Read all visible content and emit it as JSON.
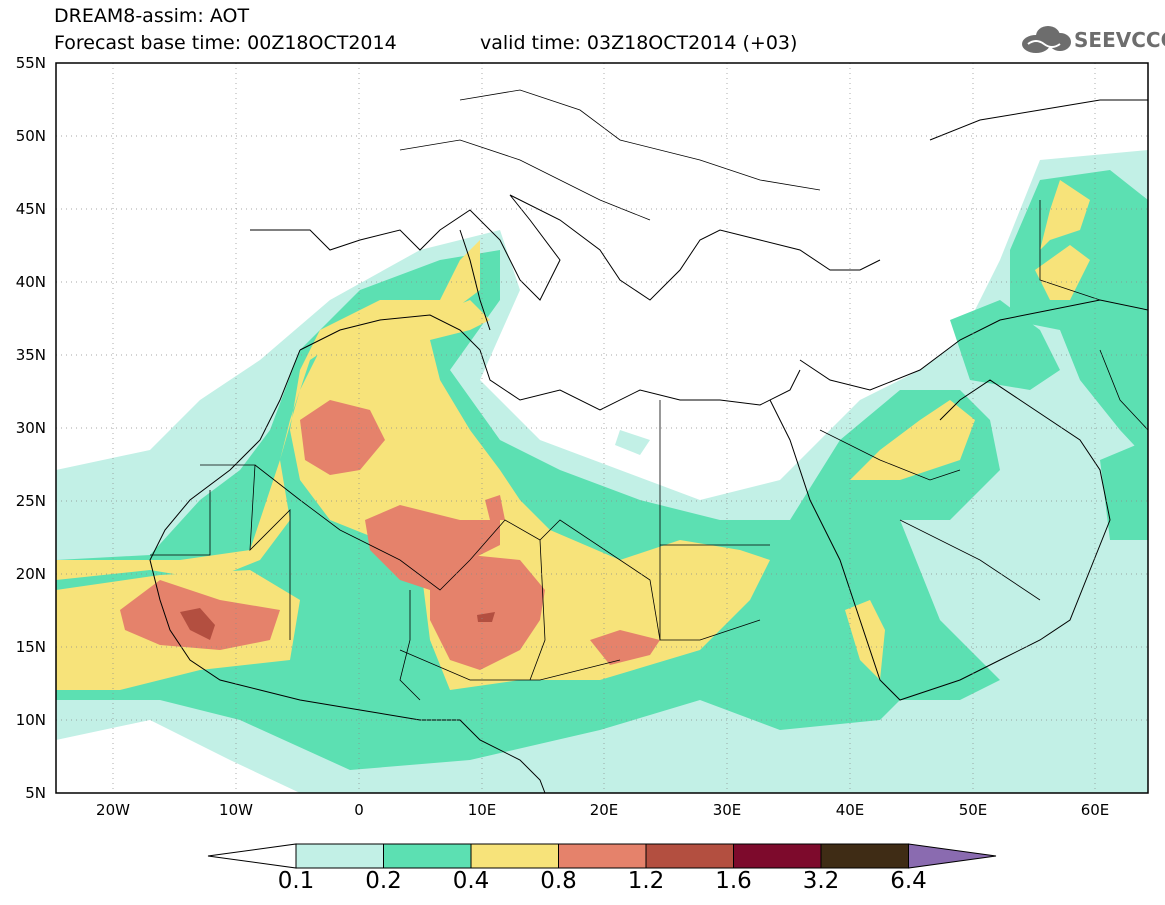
{
  "header": {
    "title_line1": "DREAM8-assim: AOT",
    "base_time": "Forecast base time: 00Z18OCT2014",
    "valid_time": "valid time: 03Z18OCT2014 (+03)",
    "logo_text": "SEEVCCC",
    "logo_icon": "cloud-icon"
  },
  "map": {
    "lon_range": [
      -25,
      65
    ],
    "lat_range": [
      5,
      55
    ],
    "lat_ticks": [
      "55N",
      "50N",
      "45N",
      "40N",
      "35N",
      "30N",
      "25N",
      "20N",
      "15N",
      "10N",
      "5N"
    ],
    "lon_ticks": [
      "20W",
      "10W",
      "0",
      "10E",
      "20E",
      "30E",
      "40E",
      "50E",
      "60E"
    ]
  },
  "colorbar": {
    "labels": [
      "0.1",
      "0.2",
      "0.4",
      "0.8",
      "1.2",
      "1.6",
      "3.2",
      "6.4"
    ],
    "colors": [
      "#ffffff",
      "#c2f0e6",
      "#5ce0b2",
      "#f7e37a",
      "#e5826b",
      "#b34f40",
      "#7d0a2c",
      "#3f2c15",
      "#8a6bb0"
    ],
    "color_names": [
      "below-0.1",
      "0.1-0.2",
      "0.2-0.4",
      "0.4-0.8",
      "0.8-1.2",
      "1.2-1.6",
      "1.6-3.2",
      "3.2-6.4",
      "above-6.4"
    ]
  }
}
